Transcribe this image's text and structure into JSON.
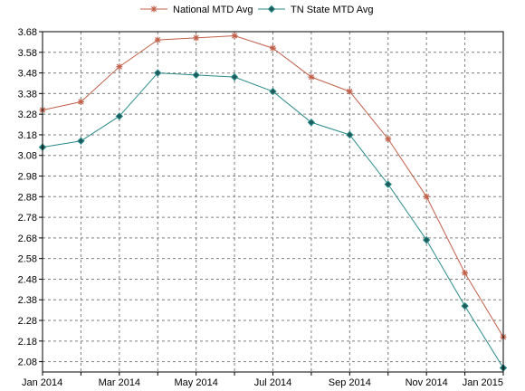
{
  "chart_data": {
    "type": "line",
    "title": "",
    "xlabel": "",
    "ylabel": "",
    "ylim": [
      2.03,
      3.68
    ],
    "y_ticks": [
      2.08,
      2.18,
      2.28,
      2.38,
      2.48,
      2.58,
      2.68,
      2.78,
      2.88,
      2.98,
      3.08,
      3.18,
      3.28,
      3.38,
      3.48,
      3.58,
      3.68
    ],
    "x_tick_labels": [
      "Jan 2014",
      "Mar 2014",
      "May 2014",
      "Jul 2014",
      "Sep 2014",
      "Nov 2014",
      "Jan 2015"
    ],
    "categories": [
      "Jan 2014",
      "Feb 2014",
      "Mar 2014",
      "Apr 2014",
      "May 2014",
      "Jun 2014",
      "Jul 2014",
      "Aug 2014",
      "Sep 2014",
      "Oct 2014",
      "Nov 2014",
      "Dec 2014",
      "Jan 2015"
    ],
    "grid": true,
    "legend_position": "top-center",
    "series": [
      {
        "name": "National MTD Avg",
        "color": "#c0604a",
        "marker": "asterisk",
        "values": [
          3.3,
          3.34,
          3.51,
          3.64,
          3.65,
          3.66,
          3.6,
          3.46,
          3.39,
          3.16,
          2.88,
          2.51,
          2.2
        ]
      },
      {
        "name": "TN State MTD Avg",
        "color": "#2a8a8a",
        "marker": "diamond",
        "values": [
          3.12,
          3.15,
          3.27,
          3.48,
          3.47,
          3.46,
          3.39,
          3.24,
          3.18,
          2.94,
          2.67,
          2.35,
          2.05
        ]
      }
    ]
  }
}
